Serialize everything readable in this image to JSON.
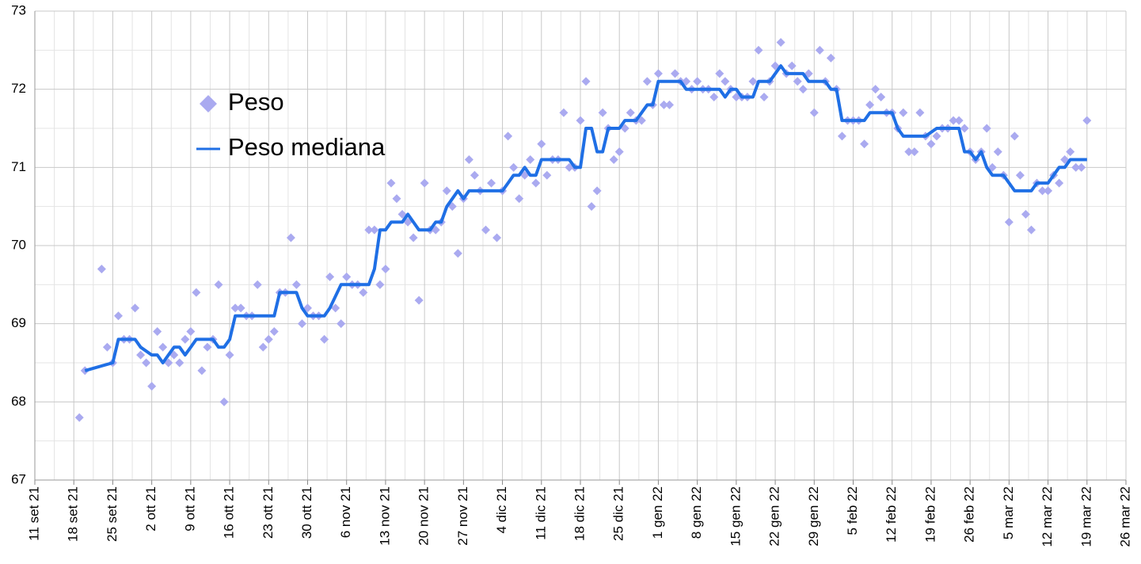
{
  "chart_data": {
    "type": "scatter",
    "series": [
      {
        "name": "Peso",
        "type": "scatter",
        "color": "#aaaaf0",
        "x": [
          8,
          9,
          12,
          13,
          14,
          15,
          16,
          17,
          18,
          19,
          20,
          21,
          22,
          23,
          24,
          25,
          26,
          27,
          28,
          29,
          30,
          31,
          32,
          33,
          34,
          35,
          36,
          37,
          38,
          39,
          40,
          41,
          42,
          43,
          44,
          45,
          46,
          47,
          48,
          49,
          50,
          51,
          52,
          53,
          54,
          55,
          56,
          57,
          58,
          59,
          60,
          61,
          62,
          63,
          64,
          65,
          66,
          67,
          68,
          69,
          70,
          71,
          72,
          73,
          74,
          75,
          76,
          77,
          78,
          79,
          80,
          81,
          82,
          83,
          84,
          85,
          86,
          87,
          88,
          89,
          90,
          91,
          92,
          93,
          94,
          95,
          96,
          97,
          98,
          99,
          100,
          101,
          102,
          103,
          104,
          105,
          106,
          107,
          108,
          109,
          110,
          111,
          112,
          113,
          114,
          115,
          116,
          117,
          118,
          119,
          120,
          121,
          122,
          123,
          124,
          125,
          126,
          127,
          128,
          129,
          130,
          131,
          132,
          133,
          134,
          135,
          136,
          137,
          138,
          139,
          140,
          141,
          142,
          143,
          144,
          145,
          146,
          147,
          148,
          149,
          150,
          151,
          152,
          153,
          154,
          155,
          156,
          157,
          158,
          159,
          160,
          161,
          162,
          163,
          164,
          165,
          166,
          167,
          168,
          169,
          170,
          171,
          172,
          173,
          174,
          175,
          176,
          177,
          178,
          179,
          180,
          181,
          182,
          183,
          184,
          185,
          186,
          187,
          188,
          189
        ],
        "values": [
          67.8,
          68.4,
          69.7,
          68.7,
          68.5,
          69.1,
          68.8,
          68.8,
          69.2,
          68.6,
          68.5,
          68.2,
          68.9,
          68.7,
          68.5,
          68.6,
          68.5,
          68.8,
          68.9,
          69.4,
          68.4,
          68.7,
          68.8,
          69.5,
          68.0,
          68.6,
          69.2,
          69.2,
          69.1,
          69.1,
          69.5,
          68.7,
          68.8,
          68.9,
          69.4,
          69.4,
          70.1,
          69.5,
          69.0,
          69.2,
          69.1,
          69.1,
          68.8,
          69.6,
          69.2,
          69.0,
          69.6,
          69.5,
          69.5,
          69.4,
          70.2,
          70.2,
          69.5,
          69.7,
          70.8,
          70.6,
          70.4,
          70.3,
          70.1,
          69.3,
          70.8,
          70.2,
          70.2,
          70.3,
          70.7,
          70.5,
          69.9,
          70.6,
          71.1,
          70.9,
          70.7,
          70.2,
          70.8,
          70.1,
          70.7,
          71.4,
          71.0,
          70.6,
          70.9,
          71.1,
          70.8,
          71.3,
          70.9,
          71.1,
          71.1,
          71.7,
          71.0,
          71.0,
          71.6,
          72.1,
          70.5,
          70.7,
          71.7,
          71.5,
          71.1,
          71.2,
          71.5,
          71.7,
          71.6,
          71.6,
          72.1,
          71.8,
          72.2,
          71.8,
          71.8,
          72.2,
          72.1,
          72.1,
          72.0,
          72.1,
          72.0,
          72.0,
          71.9,
          72.2,
          72.1,
          72.0,
          71.9,
          71.9,
          71.9,
          72.1,
          72.5,
          71.9,
          72.1,
          72.3,
          72.6,
          72.2,
          72.3,
          72.1,
          72.0,
          72.2,
          71.7,
          72.5,
          72.1,
          72.4,
          72.0,
          71.4,
          71.6,
          71.6,
          71.6,
          71.3,
          71.8,
          72.0,
          71.9,
          71.7,
          71.7,
          71.5,
          71.7,
          71.2,
          71.2,
          71.7,
          71.4,
          71.3,
          71.4,
          71.5,
          71.5,
          71.6,
          71.6,
          71.5,
          71.2,
          71.1,
          71.2,
          71.5,
          71.0,
          71.2,
          70.9,
          70.3,
          71.4,
          70.9,
          70.4,
          70.2,
          70.8,
          70.7,
          70.7,
          70.9,
          70.8,
          71.1,
          71.2,
          71.0,
          71.0,
          71.6
        ]
      },
      {
        "name": "Peso mediana",
        "type": "line",
        "color": "#1f6fe5",
        "x": [
          9,
          14,
          15,
          18,
          19,
          21,
          22,
          23,
          24,
          25,
          26,
          27,
          28,
          29,
          32,
          33,
          34,
          35,
          36,
          42,
          43,
          44,
          47,
          48,
          49,
          52,
          53,
          55,
          59,
          60,
          61,
          62,
          63,
          64,
          66,
          67,
          68,
          69,
          71,
          72,
          73,
          74,
          75,
          76,
          77,
          78,
          84,
          85,
          86,
          87,
          88,
          89,
          90,
          91,
          96,
          97,
          98,
          99,
          100,
          101,
          102,
          103,
          105,
          106,
          108,
          109,
          110,
          111,
          112,
          115,
          116,
          117,
          122,
          123,
          124,
          125,
          126,
          127,
          128,
          129,
          130,
          132,
          133,
          134,
          135,
          138,
          139,
          141,
          142,
          143,
          144,
          145,
          149,
          150,
          153,
          154,
          155,
          156,
          159,
          160,
          162,
          166,
          167,
          168,
          169,
          170,
          171,
          172,
          174,
          175,
          176,
          178,
          179,
          180,
          182,
          183,
          184,
          185,
          186,
          188,
          189
        ],
        "values": [
          68.4,
          68.5,
          68.8,
          68.8,
          68.7,
          68.6,
          68.6,
          68.5,
          68.6,
          68.7,
          68.7,
          68.6,
          68.7,
          68.8,
          68.8,
          68.7,
          68.7,
          68.8,
          69.1,
          69.1,
          69.1,
          69.4,
          69.4,
          69.2,
          69.1,
          69.1,
          69.2,
          69.5,
          69.5,
          69.5,
          69.7,
          70.2,
          70.2,
          70.3,
          70.3,
          70.4,
          70.3,
          70.2,
          70.2,
          70.3,
          70.3,
          70.5,
          70.6,
          70.7,
          70.6,
          70.7,
          70.7,
          70.8,
          70.9,
          70.9,
          71.0,
          70.9,
          70.9,
          71.1,
          71.1,
          71.0,
          71.0,
          71.5,
          71.5,
          71.2,
          71.2,
          71.5,
          71.5,
          71.6,
          71.6,
          71.7,
          71.8,
          71.8,
          72.1,
          72.1,
          72.1,
          72.0,
          72.0,
          72.0,
          71.9,
          72.0,
          72.0,
          71.9,
          71.9,
          71.9,
          72.1,
          72.1,
          72.2,
          72.3,
          72.2,
          72.2,
          72.1,
          72.1,
          72.1,
          72.0,
          72.0,
          71.6,
          71.6,
          71.7,
          71.7,
          71.7,
          71.5,
          71.4,
          71.4,
          71.4,
          71.5,
          71.5,
          71.2,
          71.2,
          71.1,
          71.2,
          71.0,
          70.9,
          70.9,
          70.8,
          70.7,
          70.7,
          70.7,
          70.8,
          70.8,
          70.9,
          71.0,
          71.0,
          71.1,
          71.1,
          71.1
        ]
      }
    ],
    "xlim": [
      0,
      196
    ],
    "xticks": [
      {
        "value": 0,
        "label": "11 set 21"
      },
      {
        "value": 7,
        "label": "18 set 21"
      },
      {
        "value": 14,
        "label": "25 set 21"
      },
      {
        "value": 21,
        "label": "2 ott 21"
      },
      {
        "value": 28,
        "label": "9 ott 21"
      },
      {
        "value": 35,
        "label": "16 ott 21"
      },
      {
        "value": 42,
        "label": "23 ott 21"
      },
      {
        "value": 49,
        "label": "30 ott 21"
      },
      {
        "value": 56,
        "label": "6 nov 21"
      },
      {
        "value": 63,
        "label": "13 nov 21"
      },
      {
        "value": 70,
        "label": "20 nov 21"
      },
      {
        "value": 77,
        "label": "27 nov 21"
      },
      {
        "value": 84,
        "label": "4 dic 21"
      },
      {
        "value": 91,
        "label": "11 dic 21"
      },
      {
        "value": 98,
        "label": "18 dic 21"
      },
      {
        "value": 105,
        "label": "25 dic 21"
      },
      {
        "value": 112,
        "label": "1 gen 22"
      },
      {
        "value": 119,
        "label": "8 gen 22"
      },
      {
        "value": 126,
        "label": "15 gen 22"
      },
      {
        "value": 133,
        "label": "22 gen 22"
      },
      {
        "value": 140,
        "label": "29 gen 22"
      },
      {
        "value": 147,
        "label": "5 feb 22"
      },
      {
        "value": 154,
        "label": "12 feb 22"
      },
      {
        "value": 161,
        "label": "19 feb 22"
      },
      {
        "value": 168,
        "label": "26 feb 22"
      },
      {
        "value": 175,
        "label": "5 mar 22"
      },
      {
        "value": 182,
        "label": "12 mar 22"
      },
      {
        "value": 189,
        "label": "19 mar 22"
      },
      {
        "value": 196,
        "label": "26 mar 22"
      }
    ],
    "ylim": [
      67,
      73
    ],
    "yticks": [
      67,
      68,
      69,
      70,
      71,
      72,
      73
    ],
    "grid": true,
    "legend": "upper-left"
  }
}
